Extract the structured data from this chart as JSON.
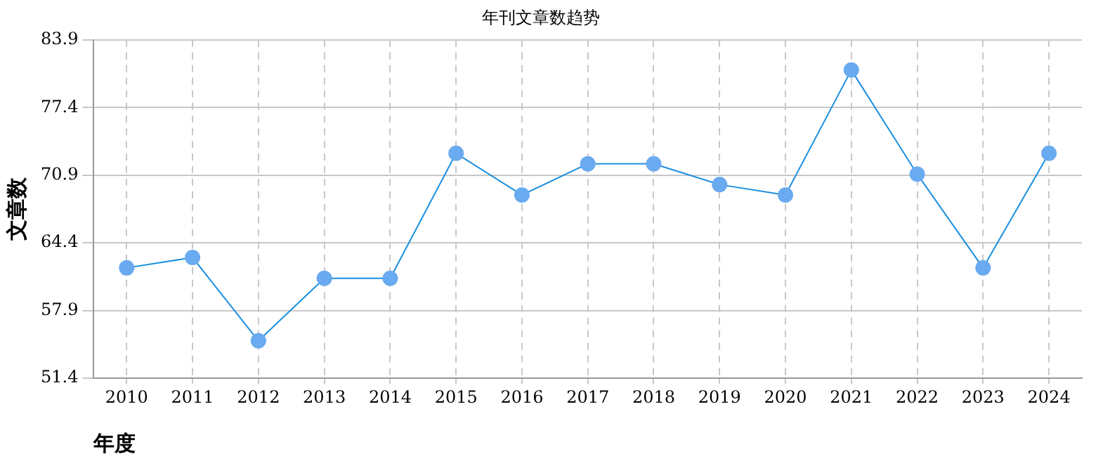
{
  "chart_data": {
    "type": "line",
    "title": "年刊文章数趋势",
    "xlabel": "年度",
    "ylabel": "文章数",
    "categories": [
      "2010",
      "2011",
      "2012",
      "2013",
      "2014",
      "2015",
      "2016",
      "2017",
      "2018",
      "2019",
      "2020",
      "2021",
      "2022",
      "2023",
      "2024"
    ],
    "series": [
      {
        "color": "#1a8fe0",
        "values": [
          62,
          63,
          55,
          61,
          61,
          73,
          69,
          72,
          72,
          70,
          69,
          81,
          71,
          62,
          73
        ]
      }
    ],
    "ylim": [
      51.4,
      83.9
    ],
    "yticks": [
      51.4,
      57.9,
      64.4,
      70.9,
      77.4,
      83.9
    ],
    "grid": true,
    "legend": false,
    "marker": "circle",
    "line_style": "solid"
  }
}
